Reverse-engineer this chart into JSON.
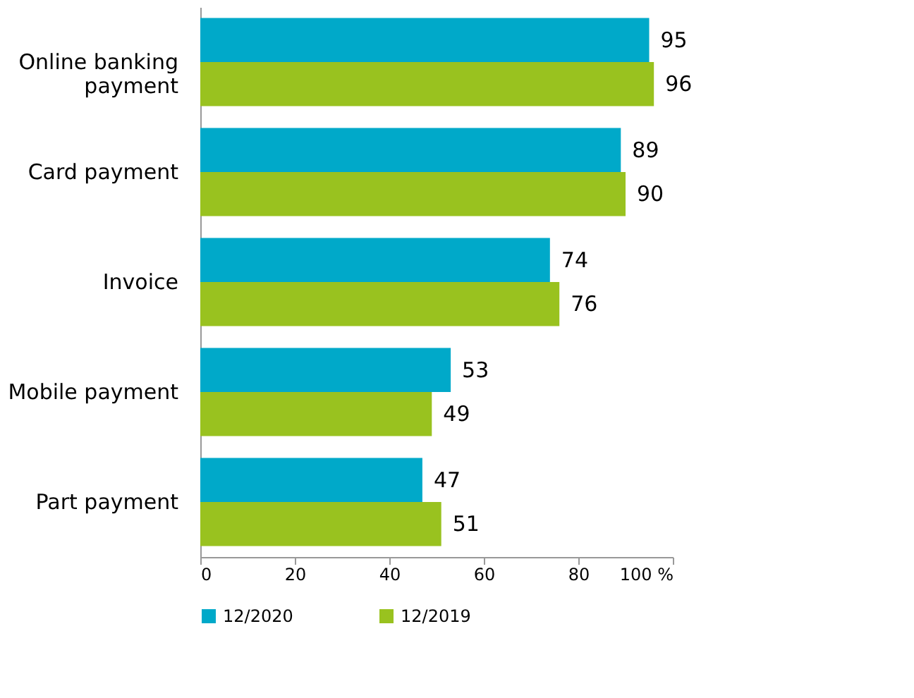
{
  "chart_data": {
    "type": "bar",
    "orientation": "horizontal",
    "categories": [
      "Online banking payment",
      "Card payment",
      "Invoice",
      "Mobile payment",
      "Part payment"
    ],
    "series": [
      {
        "name": "12/2020",
        "color": "#00a9c9",
        "values": [
          95,
          89,
          74,
          53,
          47
        ]
      },
      {
        "name": "12/2019",
        "color": "#99c21f",
        "values": [
          96,
          90,
          76,
          49,
          51
        ]
      }
    ],
    "xlim": [
      0,
      100
    ],
    "xticks": [
      0,
      20,
      40,
      60,
      80,
      {
        "value": 100,
        "label": "100 %"
      }
    ],
    "data_labels": true,
    "legend": "bottom",
    "grid": false
  }
}
